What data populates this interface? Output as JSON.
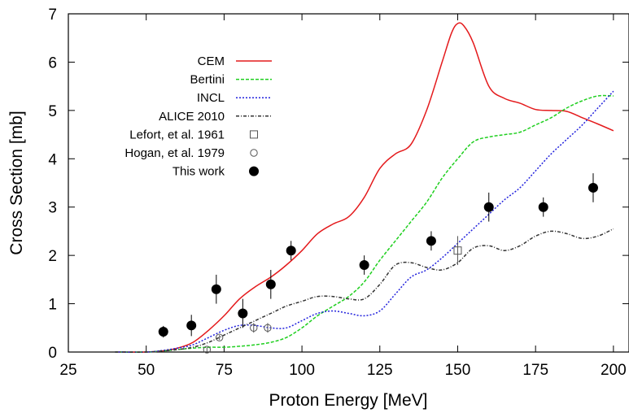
{
  "chart_data": {
    "type": "line",
    "xlabel": "Proton Energy [MeV]",
    "ylabel": "Cross Section [mb]",
    "xlim": [
      25,
      205
    ],
    "ylim": [
      0,
      7
    ],
    "xticks": [
      "25",
      "50",
      "75",
      "100",
      "125",
      "150",
      "175",
      "200"
    ],
    "yticks": [
      "0",
      "1",
      "2",
      "3",
      "4",
      "5",
      "6",
      "7"
    ],
    "grid": false,
    "legend_position": "top-left",
    "series": [
      {
        "name": "CEM",
        "style": "solid",
        "color": "#e41a1c",
        "x": [
          40,
          50,
          55,
          60,
          65,
          70,
          75,
          80,
          85,
          90,
          95,
          100,
          105,
          110,
          115,
          120,
          125,
          130,
          135,
          140,
          145,
          148,
          150,
          152,
          155,
          160,
          165,
          170,
          175,
          180,
          185,
          190,
          195,
          200
        ],
        "y": [
          0,
          0,
          0.02,
          0.08,
          0.2,
          0.45,
          0.75,
          1.1,
          1.35,
          1.55,
          1.8,
          2.1,
          2.45,
          2.65,
          2.8,
          3.2,
          3.8,
          4.1,
          4.3,
          5.0,
          6.0,
          6.6,
          6.8,
          6.75,
          6.4,
          5.5,
          5.25,
          5.15,
          5.02,
          5.0,
          4.98,
          4.85,
          4.72,
          4.58
        ]
      },
      {
        "name": "Bertini",
        "style": "dashed",
        "color": "#1fcf1f",
        "x": [
          40,
          50,
          55,
          60,
          65,
          70,
          75,
          80,
          85,
          90,
          95,
          100,
          105,
          110,
          115,
          120,
          125,
          130,
          135,
          140,
          145,
          150,
          155,
          160,
          165,
          170,
          175,
          180,
          185,
          190,
          195,
          200
        ],
        "y": [
          0,
          0,
          0.02,
          0.05,
          0.08,
          0.1,
          0.1,
          0.12,
          0.15,
          0.2,
          0.3,
          0.5,
          0.75,
          0.95,
          1.15,
          1.45,
          1.9,
          2.3,
          2.7,
          3.1,
          3.6,
          4.0,
          4.35,
          4.45,
          4.5,
          4.55,
          4.7,
          4.85,
          5.05,
          5.2,
          5.3,
          5.3
        ]
      },
      {
        "name": "INCL",
        "style": "dotted",
        "color": "#2222dd",
        "x": [
          40,
          50,
          55,
          60,
          65,
          70,
          75,
          80,
          85,
          90,
          95,
          100,
          105,
          110,
          115,
          120,
          125,
          130,
          135,
          140,
          145,
          150,
          155,
          160,
          165,
          170,
          175,
          180,
          185,
          190,
          195,
          200
        ],
        "y": [
          0,
          0,
          0.03,
          0.08,
          0.15,
          0.3,
          0.45,
          0.55,
          0.55,
          0.5,
          0.5,
          0.65,
          0.8,
          0.85,
          0.8,
          0.75,
          0.85,
          1.2,
          1.55,
          1.7,
          1.95,
          2.25,
          2.55,
          2.85,
          3.15,
          3.4,
          3.75,
          4.1,
          4.4,
          4.7,
          5.05,
          5.4
        ]
      },
      {
        "name": "ALICE 2010",
        "style": "dash-dot",
        "color": "#333333",
        "x": [
          40,
          50,
          55,
          60,
          65,
          70,
          75,
          80,
          85,
          90,
          95,
          100,
          105,
          110,
          115,
          120,
          125,
          130,
          135,
          140,
          145,
          150,
          155,
          160,
          165,
          170,
          175,
          180,
          185,
          190,
          195,
          200
        ],
        "y": [
          0,
          0,
          0.02,
          0.05,
          0.1,
          0.2,
          0.35,
          0.5,
          0.65,
          0.8,
          0.95,
          1.05,
          1.15,
          1.15,
          1.1,
          1.1,
          1.4,
          1.8,
          1.85,
          1.75,
          1.7,
          1.85,
          2.15,
          2.2,
          2.1,
          2.2,
          2.4,
          2.5,
          2.45,
          2.35,
          2.4,
          2.55
        ]
      },
      {
        "name": "Lefort, et al. 1961",
        "marker": "open-square",
        "x": [
          150
        ],
        "y": [
          2.1
        ],
        "err": [
          0.3
        ]
      },
      {
        "name": "Hogan, et al. 1979",
        "marker": "open-circle",
        "x": [
          69.5,
          73.5,
          84.5,
          89
        ],
        "y": [
          0.05,
          0.3,
          0.5,
          0.5
        ],
        "err": [
          0.05,
          0.05,
          0.1,
          0.1
        ]
      },
      {
        "name": "This work",
        "marker": "filled-circle",
        "x": [
          55.5,
          64.5,
          72.5,
          81,
          90,
          96.5,
          120,
          141.5,
          160,
          177.5,
          193.5
        ],
        "y": [
          0.42,
          0.55,
          1.3,
          0.8,
          1.4,
          2.1,
          1.8,
          2.3,
          3.0,
          3.0,
          3.4
        ],
        "err": [
          0.12,
          0.22,
          0.3,
          0.3,
          0.3,
          0.2,
          0.2,
          0.2,
          0.3,
          0.2,
          0.3
        ]
      }
    ]
  }
}
